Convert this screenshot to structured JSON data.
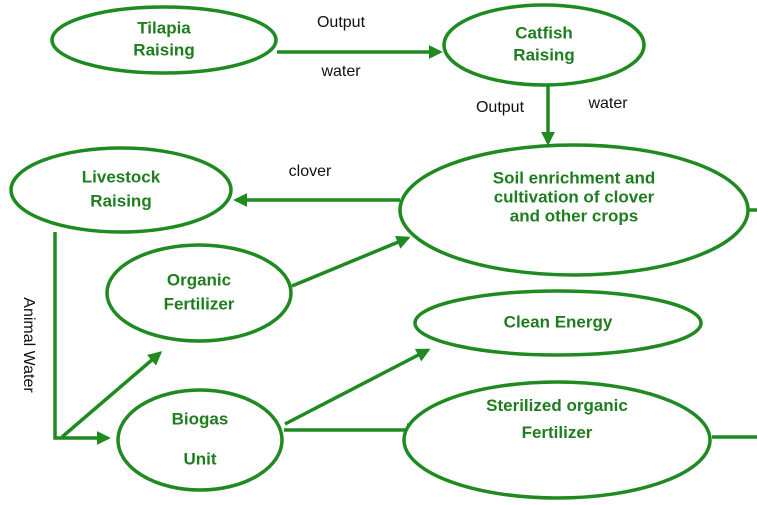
{
  "nodes": [
    {
      "lines": [
        "Tilapia",
        "Raising"
      ]
    },
    {
      "lines": [
        "Catfish",
        "Raising"
      ]
    },
    {
      "lines": [
        "Livestock",
        "Raising"
      ]
    },
    {
      "lines": [
        "Soil enrichment and",
        "cultivation of clover",
        "and other crops"
      ]
    },
    {
      "lines": [
        "Organic",
        "Fertilizer"
      ]
    },
    {
      "lines": [
        "Clean Energy"
      ]
    },
    {
      "lines": [
        "Biogas",
        "Unit"
      ]
    },
    {
      "lines": [
        "Sterilized organic",
        "Fertilizer"
      ]
    }
  ],
  "edge_labels": [
    "Output",
    "water",
    "Output",
    "water",
    "clover",
    "Animal Water"
  ]
}
